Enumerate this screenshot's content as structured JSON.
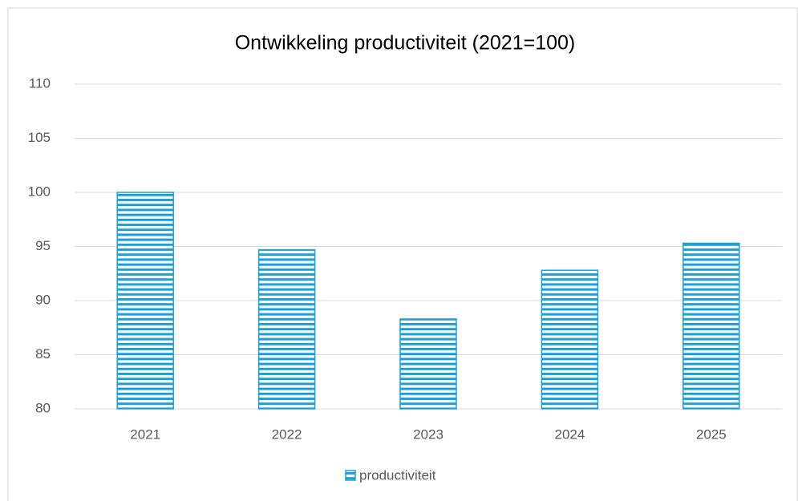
{
  "chart_data": {
    "type": "bar",
    "title": "Ontwikkeling productiviteit (2021=100)",
    "categories": [
      "2021",
      "2022",
      "2023",
      "2024",
      "2025"
    ],
    "series": [
      {
        "name": "productiviteit",
        "color": "#1c9fd9",
        "values": [
          100,
          94.7,
          88.3,
          92.8,
          95.3
        ]
      }
    ],
    "ylim": [
      80,
      110
    ],
    "yticks": [
      80,
      85,
      90,
      95,
      100,
      105,
      110
    ],
    "grid": true,
    "legend": "bottom"
  }
}
